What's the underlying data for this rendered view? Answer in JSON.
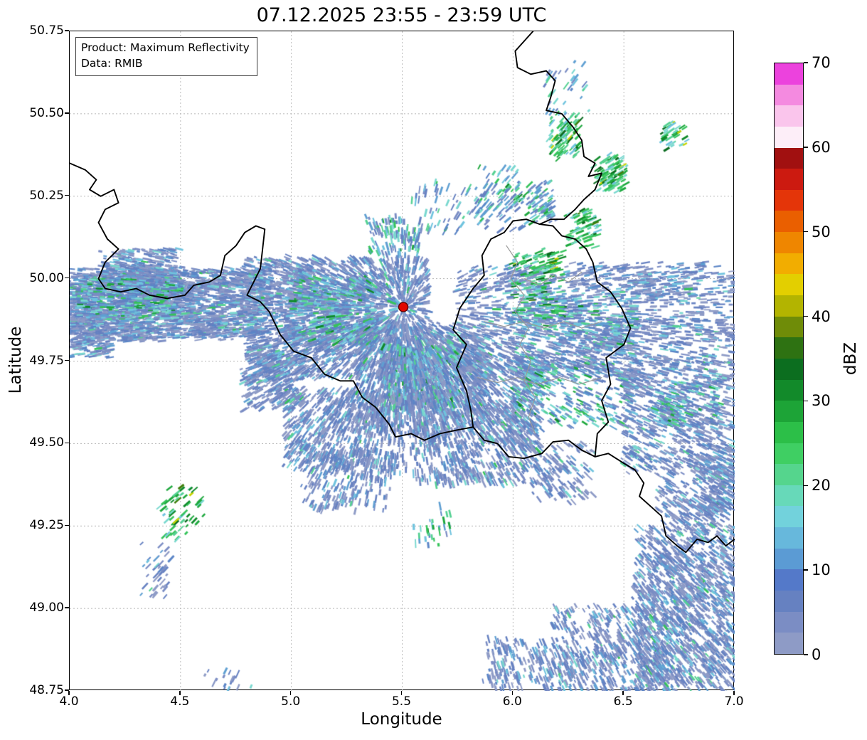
{
  "title": "07.12.2025 23:55 - 23:59 UTC",
  "info_box": {
    "line1": "Product: Maximum Reflectivity",
    "line2": "Data: RMIB"
  },
  "axes": {
    "xlabel": "Longitude",
    "ylabel": "Latitude",
    "xlim": [
      4.0,
      7.0
    ],
    "ylim": [
      48.75,
      50.75
    ],
    "x_ticks": [
      4.0,
      4.5,
      5.0,
      5.5,
      6.0,
      6.5,
      7.0
    ],
    "x_tick_labels": [
      "4.0",
      "4.5",
      "5.0",
      "5.5",
      "6.0",
      "6.5",
      "7.0"
    ],
    "y_ticks": [
      48.75,
      49.0,
      49.25,
      49.5,
      49.75,
      50.0,
      50.25,
      50.5,
      50.75
    ],
    "y_tick_labels": [
      "48.75",
      "49.00",
      "49.25",
      "49.50",
      "49.75",
      "50.00",
      "50.25",
      "50.50",
      "50.75"
    ],
    "grid_color": "#b8b8b8"
  },
  "colorbar": {
    "label": "dBZ",
    "min": 0,
    "max": 70,
    "ticks": [
      0,
      10,
      20,
      30,
      40,
      50,
      60,
      70
    ],
    "tick_labels": [
      "0",
      "10",
      "20",
      "30",
      "40",
      "50",
      "60",
      "70"
    ],
    "colors_bottom_to_top": [
      "#8e9bc6",
      "#7b8dc4",
      "#6681c1",
      "#5479c9",
      "#5b9bd4",
      "#67b8dc",
      "#72d2dc",
      "#67d9b9",
      "#55d58d",
      "#3fcf63",
      "#2cbf48",
      "#1da437",
      "#128a2a",
      "#0c6e1f",
      "#2e7212",
      "#6f8c08",
      "#b3b400",
      "#e3cf00",
      "#f2ad00",
      "#ef8600",
      "#ea5f00",
      "#e43509",
      "#cc1a10",
      "#a11010",
      "#fdeef8",
      "#fac5ec",
      "#f48ae0",
      "#ec42dd"
    ]
  },
  "marker": {
    "name": "radar-site",
    "lon": 5.505,
    "lat": 49.914,
    "fill": "#e10600",
    "edge": "#5e0000"
  },
  "map": {
    "country_border_color": "#000000",
    "admin_border_color": "#9a9a9a",
    "country_borders": [
      [
        [
          4.0,
          50.35
        ],
        [
          4.07,
          50.33
        ],
        [
          4.12,
          50.3
        ],
        [
          4.09,
          50.27
        ],
        [
          4.14,
          50.25
        ],
        [
          4.2,
          50.27
        ],
        [
          4.22,
          50.23
        ],
        [
          4.16,
          50.21
        ],
        [
          4.13,
          50.17
        ],
        [
          4.17,
          50.12
        ],
        [
          4.22,
          50.09
        ],
        [
          4.16,
          50.05
        ],
        [
          4.13,
          50.0
        ],
        [
          4.16,
          49.97
        ],
        [
          4.23,
          49.96
        ],
        [
          4.3,
          49.97
        ],
        [
          4.36,
          49.95
        ],
        [
          4.44,
          49.94
        ],
        [
          4.52,
          49.95
        ],
        [
          4.56,
          49.98
        ],
        [
          4.63,
          49.99
        ],
        [
          4.68,
          50.01
        ],
        [
          4.7,
          50.07
        ],
        [
          4.75,
          50.1
        ],
        [
          4.79,
          50.14
        ],
        [
          4.84,
          50.16
        ],
        [
          4.88,
          50.15
        ],
        [
          4.87,
          50.09
        ],
        [
          4.86,
          50.03
        ],
        [
          4.83,
          49.99
        ],
        [
          4.8,
          49.95
        ],
        [
          4.86,
          49.93
        ],
        [
          4.9,
          49.9
        ],
        [
          4.95,
          49.83
        ],
        [
          5.01,
          49.78
        ],
        [
          5.09,
          49.76
        ],
        [
          5.15,
          49.71
        ],
        [
          5.22,
          49.69
        ],
        [
          5.28,
          49.69
        ],
        [
          5.32,
          49.64
        ],
        [
          5.38,
          49.61
        ],
        [
          5.44,
          49.56
        ],
        [
          5.47,
          49.52
        ],
        [
          5.54,
          49.53
        ],
        [
          5.6,
          49.51
        ],
        [
          5.67,
          49.53
        ],
        [
          5.74,
          49.54
        ],
        [
          5.82,
          49.55
        ]
      ],
      [
        [
          6.09,
          50.75
        ],
        [
          6.05,
          50.72
        ],
        [
          6.01,
          50.69
        ],
        [
          6.02,
          50.64
        ],
        [
          6.08,
          50.62
        ],
        [
          6.15,
          50.63
        ],
        [
          6.19,
          50.6
        ],
        [
          6.17,
          50.55
        ],
        [
          6.15,
          50.51
        ],
        [
          6.22,
          50.5
        ],
        [
          6.27,
          50.46
        ],
        [
          6.31,
          50.42
        ],
        [
          6.32,
          50.37
        ],
        [
          6.37,
          50.35
        ],
        [
          6.34,
          50.31
        ],
        [
          6.4,
          50.32
        ],
        [
          6.37,
          50.27
        ],
        [
          6.32,
          50.24
        ],
        [
          6.28,
          50.21
        ],
        [
          6.23,
          50.18
        ],
        [
          6.17,
          50.18
        ],
        [
          6.12,
          50.165
        ]
      ],
      [
        [
          6.12,
          50.165
        ],
        [
          6.06,
          50.18
        ],
        [
          6.0,
          50.175
        ],
        [
          5.96,
          50.14
        ],
        [
          5.9,
          50.12
        ],
        [
          5.86,
          50.07
        ],
        [
          5.87,
          50.01
        ],
        [
          5.82,
          49.97
        ],
        [
          5.76,
          49.91
        ],
        [
          5.73,
          49.845
        ],
        [
          5.79,
          49.8
        ],
        [
          5.745,
          49.73
        ],
        [
          5.79,
          49.66
        ],
        [
          5.81,
          49.6
        ],
        [
          5.82,
          49.55
        ],
        [
          5.87,
          49.51
        ],
        [
          5.93,
          49.5
        ],
        [
          5.98,
          49.46
        ],
        [
          6.05,
          49.455
        ],
        [
          6.13,
          49.47
        ],
        [
          6.18,
          49.505
        ],
        [
          6.25,
          49.51
        ],
        [
          6.31,
          49.48
        ],
        [
          6.37,
          49.46
        ],
        [
          6.38,
          49.53
        ],
        [
          6.43,
          49.565
        ],
        [
          6.4,
          49.63
        ],
        [
          6.44,
          49.68
        ],
        [
          6.42,
          49.76
        ],
        [
          6.5,
          49.8
        ],
        [
          6.53,
          49.85
        ],
        [
          6.49,
          49.91
        ],
        [
          6.44,
          49.96
        ],
        [
          6.38,
          49.99
        ],
        [
          6.36,
          50.05
        ],
        [
          6.33,
          50.09
        ],
        [
          6.28,
          50.12
        ],
        [
          6.22,
          50.13
        ],
        [
          6.18,
          50.16
        ],
        [
          6.12,
          50.165
        ]
      ],
      [
        [
          6.37,
          49.46
        ],
        [
          6.43,
          49.47
        ],
        [
          6.5,
          49.44
        ],
        [
          6.55,
          49.42
        ],
        [
          6.59,
          49.38
        ],
        [
          6.57,
          49.34
        ],
        [
          6.62,
          49.31
        ],
        [
          6.67,
          49.28
        ],
        [
          6.69,
          49.22
        ],
        [
          6.74,
          49.19
        ],
        [
          6.78,
          49.17
        ],
        [
          6.83,
          49.21
        ],
        [
          6.88,
          49.2
        ],
        [
          6.92,
          49.22
        ],
        [
          6.96,
          49.19
        ],
        [
          7.0,
          49.21
        ]
      ]
    ],
    "admin_borders": [
      [
        [
          5.97,
          50.1
        ],
        [
          6.02,
          50.05
        ],
        [
          5.99,
          50.0
        ],
        [
          6.05,
          49.95
        ],
        [
          6.01,
          49.9
        ],
        [
          6.07,
          49.85
        ],
        [
          6.03,
          49.8
        ],
        [
          6.08,
          49.75
        ],
        [
          6.05,
          49.69
        ],
        [
          6.1,
          49.64
        ],
        [
          6.07,
          49.58
        ],
        [
          6.1,
          49.53
        ]
      ],
      [
        [
          5.87,
          49.87
        ],
        [
          5.96,
          49.855
        ],
        [
          6.05,
          49.87
        ],
        [
          6.14,
          49.85
        ],
        [
          6.23,
          49.87
        ],
        [
          6.31,
          49.85
        ],
        [
          6.4,
          49.87
        ]
      ],
      [
        [
          5.84,
          49.7
        ],
        [
          5.93,
          49.685
        ],
        [
          6.02,
          49.7
        ],
        [
          6.11,
          49.68
        ],
        [
          6.21,
          49.7
        ],
        [
          6.3,
          49.68
        ],
        [
          6.4,
          49.7
        ]
      ],
      [
        [
          6.05,
          50.0
        ],
        [
          6.12,
          49.98
        ],
        [
          6.18,
          50.01
        ],
        [
          6.25,
          49.99
        ],
        [
          6.31,
          50.02
        ]
      ]
    ]
  },
  "radar_field": {
    "seed": 1234567,
    "palettes": {
      "low": [
        [
          "#8e9bc6",
          26
        ],
        [
          "#7b8dc4",
          24
        ],
        [
          "#6681c1",
          20
        ],
        [
          "#5b85c6",
          10
        ],
        [
          "#5f9fd2",
          9
        ],
        [
          "#6fc3de",
          6
        ],
        [
          "#79d8cf",
          3
        ],
        [
          "#55d193",
          1.5
        ],
        [
          "#35c35a",
          0.5
        ]
      ],
      "mid": [
        [
          "#7b8dc4",
          14
        ],
        [
          "#6681c1",
          14
        ],
        [
          "#5b85c6",
          12
        ],
        [
          "#5f9fd2",
          14
        ],
        [
          "#6fc3de",
          14
        ],
        [
          "#79d8cf",
          12
        ],
        [
          "#55d193",
          9
        ],
        [
          "#35c35a",
          6
        ],
        [
          "#1ea83e",
          3
        ],
        [
          "#0f8a2a",
          2
        ]
      ],
      "green": [
        [
          "#6fc3de",
          8
        ],
        [
          "#79d8cf",
          14
        ],
        [
          "#55d193",
          20
        ],
        [
          "#35c35a",
          22
        ],
        [
          "#1ea83e",
          16
        ],
        [
          "#0f8a2a",
          10
        ],
        [
          "#0a6b1f",
          6
        ],
        [
          "#c8d400",
          2
        ],
        [
          "#3f7d0a",
          2
        ]
      ]
    },
    "clusters": [
      [
        4.0,
        4.88,
        49.82,
        50.03,
        2600,
        "low"
      ],
      [
        4.02,
        4.5,
        49.88,
        50.0,
        500,
        "mid"
      ],
      [
        4.15,
        4.48,
        50.0,
        50.09,
        220,
        "low"
      ],
      [
        4.0,
        4.18,
        49.77,
        49.88,
        220,
        "low"
      ],
      [
        4.8,
        5.62,
        49.7,
        50.06,
        2700,
        "low"
      ],
      [
        5.0,
        5.38,
        49.8,
        50.0,
        520,
        "mid"
      ],
      [
        4.78,
        5.05,
        49.6,
        49.76,
        320,
        "low"
      ],
      [
        5.28,
        5.88,
        49.53,
        49.86,
        1500,
        "low"
      ],
      [
        5.42,
        5.75,
        49.6,
        49.8,
        420,
        "mid"
      ],
      [
        4.98,
        5.52,
        49.42,
        49.66,
        750,
        "low"
      ],
      [
        5.55,
        6.12,
        49.38,
        49.76,
        1300,
        "low"
      ],
      [
        5.75,
        6.62,
        49.7,
        50.04,
        1500,
        "low"
      ],
      [
        6.0,
        6.55,
        49.55,
        49.95,
        700,
        "mid"
      ],
      [
        6.0,
        6.22,
        49.88,
        50.08,
        140,
        "green"
      ],
      [
        6.5,
        7.0,
        49.42,
        49.75,
        900,
        "low"
      ],
      [
        6.65,
        6.92,
        49.55,
        49.68,
        130,
        "mid"
      ],
      [
        6.6,
        7.0,
        49.75,
        50.04,
        420,
        "low"
      ],
      [
        6.55,
        7.0,
        48.75,
        49.25,
        1500,
        "low"
      ],
      [
        6.18,
        6.72,
        48.75,
        49.0,
        550,
        "low"
      ],
      [
        6.65,
        6.97,
        49.25,
        49.4,
        260,
        "low"
      ],
      [
        6.85,
        7.0,
        49.3,
        49.46,
        150,
        "low"
      ],
      [
        5.88,
        6.28,
        48.75,
        48.9,
        220,
        "low"
      ],
      [
        5.35,
        5.58,
        50.07,
        50.18,
        130,
        "mid"
      ],
      [
        5.55,
        6.18,
        50.14,
        50.3,
        140,
        "mid"
      ],
      [
        5.85,
        6.02,
        50.21,
        50.34,
        60,
        "mid"
      ],
      [
        6.17,
        6.3,
        50.37,
        50.5,
        90,
        "green"
      ],
      [
        6.38,
        6.5,
        50.27,
        50.37,
        100,
        "green"
      ],
      [
        6.25,
        6.38,
        50.09,
        50.2,
        70,
        "green"
      ],
      [
        6.08,
        6.18,
        50.18,
        50.28,
        60,
        "mid"
      ],
      [
        6.68,
        6.78,
        50.4,
        50.47,
        40,
        "green"
      ],
      [
        6.15,
        6.35,
        50.5,
        50.66,
        35,
        "mid"
      ],
      [
        4.42,
        4.62,
        49.22,
        49.36,
        60,
        "green"
      ],
      [
        4.32,
        4.46,
        49.04,
        49.2,
        45,
        "low"
      ],
      [
        5.05,
        5.45,
        49.3,
        49.47,
        280,
        "low"
      ],
      [
        6.08,
        6.38,
        49.33,
        49.5,
        160,
        "low"
      ],
      [
        5.55,
        5.72,
        49.19,
        49.3,
        30,
        "mid"
      ],
      [
        4.6,
        4.82,
        48.75,
        48.82,
        18,
        "low"
      ],
      [
        6.6,
        6.82,
        49.93,
        50.02,
        90,
        "low"
      ]
    ]
  },
  "chart_data": {
    "type": "heatmap",
    "title": "07.12.2025 23:55 - 23:59 UTC",
    "xlabel": "Longitude",
    "ylabel": "Latitude",
    "xlim": [
      4.0,
      7.0
    ],
    "ylim": [
      48.75,
      50.75
    ],
    "grid": true,
    "colorbar": {
      "label": "dBZ",
      "range": [
        0,
        70
      ],
      "ticks": [
        0,
        10,
        20,
        30,
        40,
        50,
        60,
        70
      ]
    },
    "marker": {
      "label": "radar site",
      "lon": 5.505,
      "lat": 49.914
    },
    "description": "Radar maximum reflectivity composite over Belgium, Luxembourg and surroundings; widespread weak echoes 0-15 dBZ in an E-W band near lat 49.5-50.05 and over the southeast, with scattered 15-35 dBZ cells"
  }
}
